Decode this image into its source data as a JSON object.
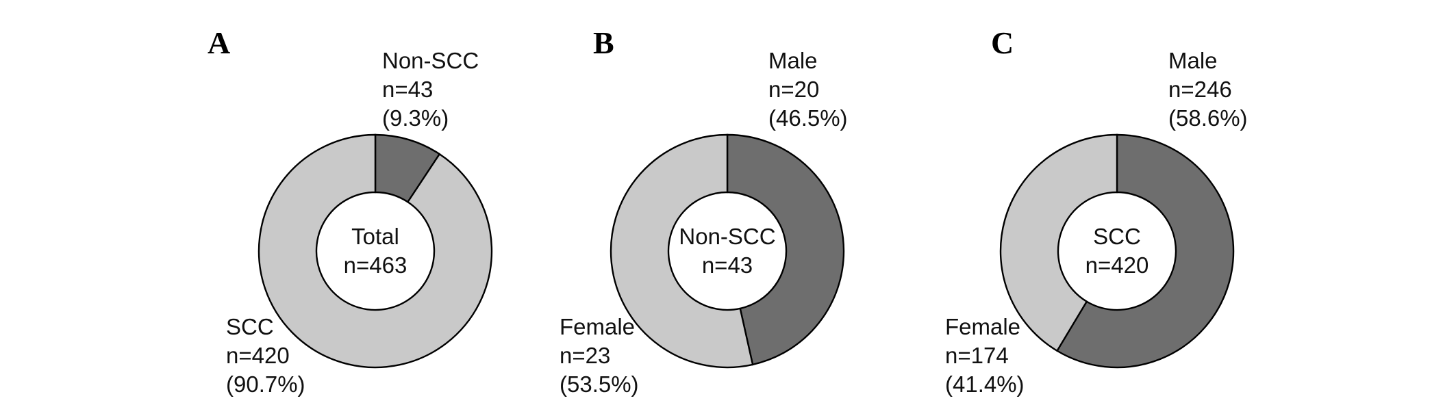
{
  "chart_data": [
    {
      "type": "pie",
      "subtype": "donut",
      "panel_label": "A",
      "center_lines": [
        "Total",
        "n=463"
      ],
      "total": 463,
      "direction": "clockwise",
      "start_angle_deg": 0,
      "slices": [
        {
          "label": "Non-SCC",
          "value": 43,
          "percent": 9.3,
          "color": "#6e6e6e",
          "callout_position": "top-right",
          "label_lines": [
            "Non-SCC",
            "n=43",
            "(9.3%)"
          ]
        },
        {
          "label": "SCC",
          "value": 420,
          "percent": 90.7,
          "color": "#c9c9c9",
          "callout_position": "bottom-left",
          "label_lines": [
            "SCC",
            "n=420",
            "(90.7%)"
          ]
        }
      ]
    },
    {
      "type": "pie",
      "subtype": "donut",
      "panel_label": "B",
      "center_lines": [
        "Non-SCC",
        "n=43"
      ],
      "total": 43,
      "direction": "clockwise",
      "start_angle_deg": 0,
      "slices": [
        {
          "label": "Male",
          "value": 20,
          "percent": 46.5,
          "color": "#6e6e6e",
          "callout_position": "top-right",
          "label_lines": [
            "Male",
            "n=20",
            "(46.5%)"
          ]
        },
        {
          "label": "Female",
          "value": 23,
          "percent": 53.5,
          "color": "#c9c9c9",
          "callout_position": "bottom-left",
          "label_lines": [
            "Female",
            "n=23",
            "(53.5%)"
          ]
        }
      ]
    },
    {
      "type": "pie",
      "subtype": "donut",
      "panel_label": "C",
      "center_lines": [
        "SCC",
        "n=420"
      ],
      "total": 420,
      "direction": "clockwise",
      "start_angle_deg": 0,
      "slices": [
        {
          "label": "Male",
          "value": 246,
          "percent": 58.6,
          "color": "#6e6e6e",
          "callout_position": "top-right",
          "label_lines": [
            "Male",
            "n=246",
            "(58.6%)"
          ]
        },
        {
          "label": "Female",
          "value": 174,
          "percent": 41.4,
          "color": "#c9c9c9",
          "callout_position": "bottom-left",
          "label_lines": [
            "Female",
            "n=174",
            "(41.4%)"
          ]
        }
      ]
    }
  ],
  "colors": {
    "dark_gray": "#6e6e6e",
    "light_gray": "#c9c9c9",
    "outline": "#000000",
    "background": "#ffffff"
  }
}
